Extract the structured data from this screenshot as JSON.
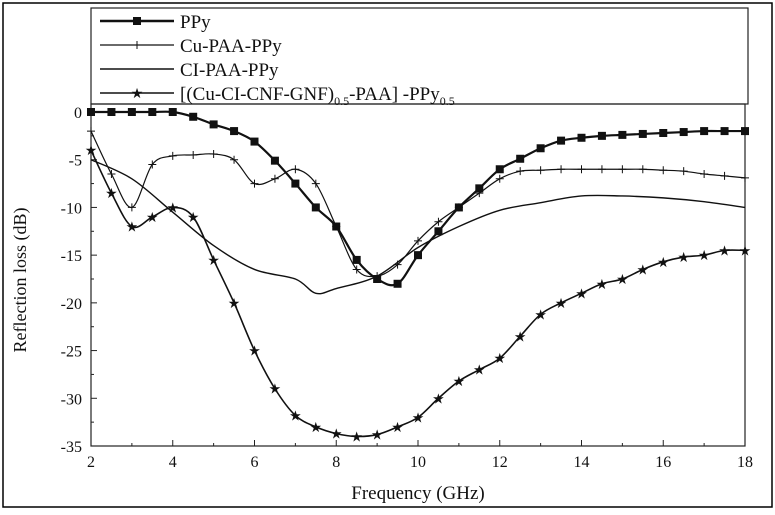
{
  "chart_data": {
    "type": "line",
    "title": "",
    "xlabel": "Frequency (GHz)",
    "ylabel": "Reflection loss (dB)",
    "xlim": [
      2,
      18
    ],
    "ylim": [
      -35,
      0
    ],
    "xticks": [
      2,
      4,
      6,
      8,
      10,
      12,
      14,
      16,
      18
    ],
    "yticks": [
      0,
      -5,
      -10,
      -15,
      -20,
      -25,
      -30,
      -35
    ],
    "grid": false,
    "legend_position": "top",
    "series": [
      {
        "name": "PPy",
        "marker": "square",
        "x": [
          2,
          2.5,
          3,
          3.5,
          4,
          4.5,
          5,
          5.5,
          6,
          6.5,
          7,
          7.5,
          8,
          8.5,
          9,
          9.5,
          10,
          10.5,
          11,
          11.5,
          12,
          12.5,
          13,
          13.5,
          14,
          14.5,
          15,
          15.5,
          16,
          16.5,
          17,
          17.5,
          18
        ],
        "y": [
          0,
          0,
          0,
          0,
          0,
          -0.5,
          -1.3,
          -2,
          -3.1,
          -5.1,
          -7.5,
          -10,
          -12,
          -15.5,
          -17.5,
          -18,
          -15,
          -12.5,
          -10,
          -8,
          -6,
          -4.9,
          -3.8,
          -3,
          -2.7,
          -2.5,
          -2.4,
          -2.3,
          -2.2,
          -2.1,
          -2,
          -2,
          -2
        ]
      },
      {
        "name": "Cu-PAA-PPy",
        "marker": "plus",
        "x": [
          2,
          2.5,
          3,
          3.5,
          4,
          4.5,
          5,
          5.5,
          6,
          6.5,
          7,
          7.5,
          8,
          8.5,
          9,
          9.5,
          10,
          10.5,
          11,
          11.5,
          12,
          12.5,
          13,
          13.5,
          14,
          14.5,
          15,
          15.5,
          16,
          16.5,
          17,
          17.5,
          18
        ],
        "y": [
          -2,
          -6.5,
          -10,
          -5.5,
          -4.6,
          -4.5,
          -4.4,
          -5,
          -7.5,
          -7,
          -6,
          -7.5,
          -12,
          -16.5,
          -17.2,
          -16,
          -13.5,
          -11.5,
          -10,
          -8.5,
          -7,
          -6.2,
          -6.1,
          -6,
          -6,
          -6,
          -6,
          -6,
          -6.1,
          -6.2,
          -6.5,
          -6.7,
          -6.9
        ]
      },
      {
        "name": "CI-PAA-PPy",
        "marker": "none",
        "x": [
          2,
          3,
          4,
          5,
          6,
          7,
          7.5,
          8,
          9,
          10,
          11,
          12,
          13,
          14,
          15,
          16,
          17,
          18
        ],
        "y": [
          -5,
          -7,
          -10.5,
          -14,
          -16.5,
          -17.5,
          -19,
          -18.5,
          -17.2,
          -14.2,
          -12,
          -10.3,
          -9.5,
          -8.8,
          -8.8,
          -9,
          -9.4,
          -10
        ]
      },
      {
        "name": "[(Cu-CI-CNF-GNF)0.5-PAA] -PPy0.5",
        "marker": "star",
        "x": [
          2,
          2.5,
          3,
          3.5,
          4,
          4.5,
          5,
          5.5,
          6,
          6.5,
          7,
          7.5,
          8,
          8.5,
          9,
          9.5,
          10,
          10.5,
          11,
          11.5,
          12,
          12.5,
          13,
          13.5,
          14,
          14.5,
          15,
          15.5,
          16,
          16.5,
          17,
          17.5,
          18
        ],
        "y": [
          -4,
          -8.5,
          -12,
          -11,
          -10,
          -11,
          -15.5,
          -20,
          -25,
          -29,
          -31.8,
          -33,
          -33.7,
          -34,
          -33.8,
          -33,
          -32,
          -30,
          -28.2,
          -27,
          -25.8,
          -23.5,
          -21.2,
          -20,
          -19,
          -18,
          -17.5,
          -16.5,
          -15.7,
          -15.2,
          -15,
          -14.5,
          -14.5
        ]
      }
    ],
    "legend_labels": {
      "s0": "PPy",
      "s1": "Cu-PAA-PPy",
      "s2": "CI-PAA-PPy",
      "s3_main": "[(Cu-CI-CNF-GNF)",
      "s3_sub1": "0.5",
      "s3_mid": "-PAA] -PPy",
      "s3_sub2": "0.5"
    }
  }
}
